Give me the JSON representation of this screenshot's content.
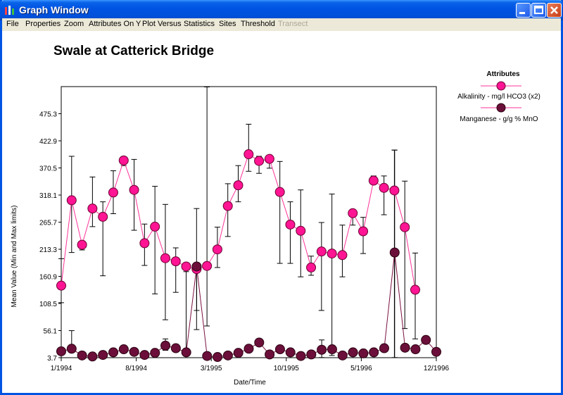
{
  "window": {
    "title": "Graph Window"
  },
  "menu": [
    "File",
    "Properties",
    "Zoom",
    "Attributes On Y",
    "Plot Versus",
    "Statistics",
    "Sites",
    "Threshold",
    "Transect"
  ],
  "menu_disabled": [
    "Transect"
  ],
  "colors": {
    "alkalinity": "#ff1493",
    "manganese": "#6b0f3a",
    "line_alk": "#ff3399",
    "line_mn": "#7a1040"
  },
  "chart_data": {
    "type": "line",
    "title": "Swale at Catterick Bridge",
    "xlabel": "Date/Time",
    "ylabel": "Mean Value (Min and Max limits)",
    "yticks": [
      "3.7",
      "56.1",
      "108.5",
      "160.9",
      "213.3",
      "265.7",
      "318.1",
      "370.5",
      "422.9",
      "475.3"
    ],
    "xticks": [
      "1/1994",
      "8/1994",
      "3/1995",
      "10/1995",
      "5/1996",
      "12/1996"
    ],
    "ylim": [
      3.7,
      527.7
    ],
    "legend_title": "Attributes",
    "legend_position": "right",
    "series": [
      {
        "name": "Alkalinity - mg/l HCO3 (x2)",
        "mean": [
          143,
          308,
          222,
          292,
          276,
          323,
          385,
          328,
          225,
          257,
          196,
          190,
          180,
          175,
          181,
          213,
          297,
          337,
          397,
          384,
          388,
          324,
          261,
          249,
          178,
          209,
          205,
          202,
          283,
          248,
          346,
          332,
          327,
          256,
          135
        ],
        "min": [
          110,
          207,
          212,
          257,
          162,
          282,
          375,
          250,
          182,
          127,
          77,
          130,
          10,
          58,
          65,
          178,
          238,
          305,
          364,
          360,
          370,
          186,
          186,
          160,
          163,
          95,
          8,
          160,
          260,
          205,
          340,
          280,
          0,
          60,
          40
        ],
        "max": [
          195,
          393,
          225,
          353,
          305,
          365,
          392,
          387,
          262,
          335,
          300,
          216,
          170,
          292,
          527,
          256,
          340,
          375,
          455,
          393,
          393,
          383,
          305,
          328,
          200,
          265,
          320,
          260,
          282,
          275,
          355,
          355,
          405,
          345,
          206
        ]
      },
      {
        "name": "Manganese - g/g % MnO",
        "mean": [
          16,
          21,
          8,
          6,
          9,
          14,
          20,
          15,
          9,
          13,
          27,
          22,
          14,
          180,
          7,
          5,
          8,
          13,
          21,
          33,
          10,
          20,
          14,
          7,
          10,
          19,
          20,
          8,
          14,
          12,
          14,
          22,
          207,
          23,
          20,
          38,
          15
        ],
        "min": [
          null,
          14,
          null,
          null,
          null,
          null,
          null,
          null,
          null,
          null,
          18,
          null,
          null,
          95,
          null,
          null,
          null,
          null,
          null,
          null,
          null,
          null,
          null,
          null,
          null,
          4,
          null,
          null,
          null,
          null,
          null,
          null,
          4,
          null,
          null,
          null,
          null
        ],
        "max": [
          78,
          56,
          null,
          null,
          null,
          null,
          null,
          null,
          null,
          null,
          40,
          null,
          null,
          185,
          null,
          null,
          null,
          null,
          null,
          null,
          null,
          null,
          null,
          null,
          null,
          38,
          null,
          null,
          null,
          null,
          null,
          null,
          405,
          null,
          null,
          null,
          null
        ]
      }
    ]
  }
}
